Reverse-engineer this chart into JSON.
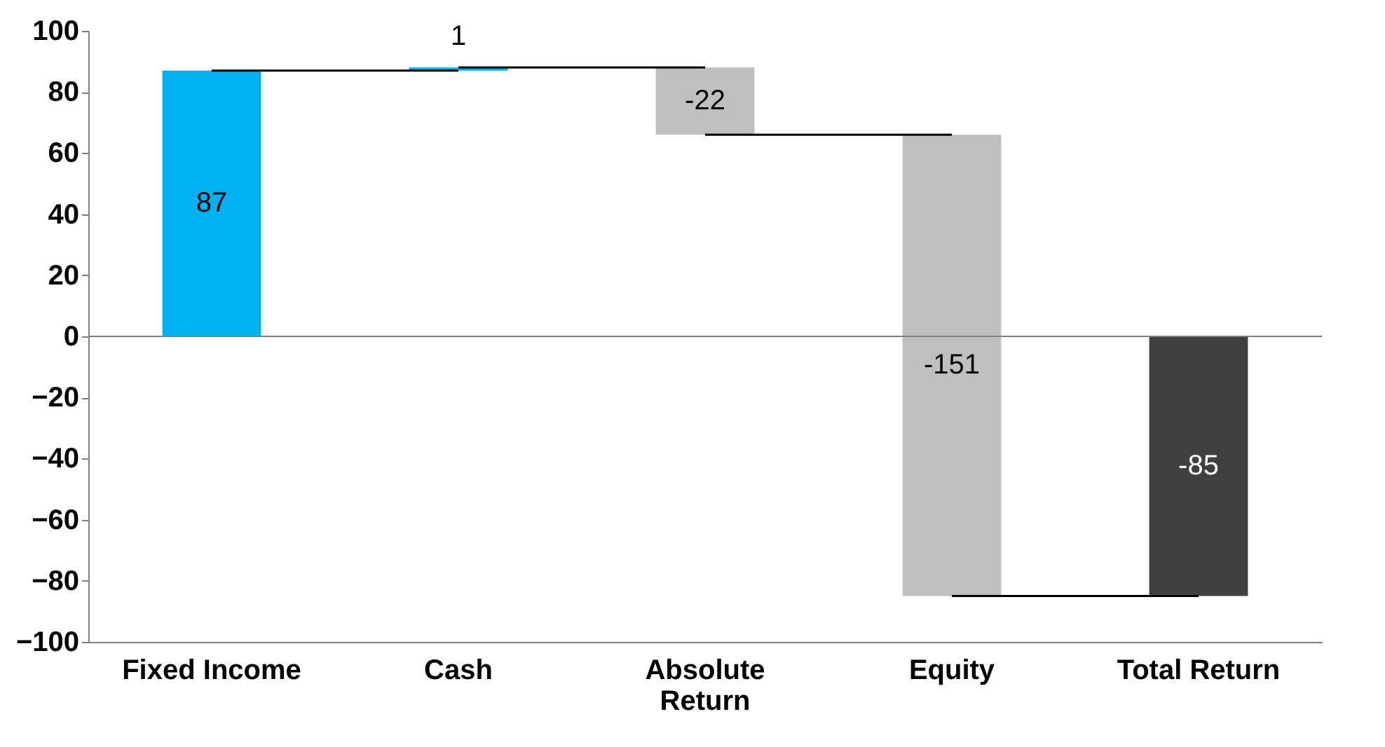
{
  "chart_data": {
    "type": "bar",
    "categories": [
      "Fixed Income",
      "Cash",
      "Absolute Return",
      "Equity",
      "Total Return"
    ],
    "values": [
      87,
      1,
      -22,
      -151,
      -85
    ],
    "base": [
      0,
      87,
      88,
      66,
      0
    ],
    "colors": [
      "#00b0f0",
      "#00b0f0",
      "#bfbfbf",
      "#bfbfbf",
      "#404040"
    ],
    "ylim": [
      -100,
      100
    ],
    "yticks": [
      -100,
      -80,
      -60,
      -40,
      -20,
      0,
      20,
      40,
      60,
      80,
      100
    ],
    "ref_lines": [
      {
        "axis": "y",
        "value": 0,
        "color": "#7f7f7f"
      }
    ],
    "data_labels": true,
    "grid": false
  }
}
